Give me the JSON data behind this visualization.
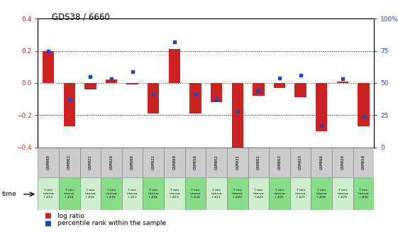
{
  "title": "GDS38 / 6660",
  "samples": [
    "GSM980",
    "GSM863",
    "GSM921",
    "GSM920",
    "GSM988",
    "GSM922",
    "GSM989",
    "GSM858",
    "GSM902",
    "GSM931",
    "GSM861",
    "GSM862",
    "GSM923",
    "GSM860",
    "GSM924",
    "GSM859"
  ],
  "time_labels": [
    "7 min\ninterva\nl #13",
    "7 min\ninterva\nl #14",
    "7 min\ninterva\nl #15",
    "7 min\ninterva\nl #16",
    "7 min\ninterva\nl #17",
    "7 min\ninterva\nl #18",
    "7 min\ninterva\nl #19",
    "7 min\ninterva\nl #20",
    "7 min\ninterva\nl #21",
    "7 min\ninterva\nl #22",
    "7 min\ninterva\nl #23",
    "7 min\ninterva\nl #25",
    "7 min\ninterva\nl #27",
    "7 min\ninterva\nl #28",
    "7 min\ninterva\nl #29",
    "7 min\ninterva\nl #30"
  ],
  "log_ratio": [
    0.2,
    -0.27,
    -0.04,
    0.02,
    -0.01,
    -0.19,
    0.21,
    -0.19,
    -0.12,
    -0.42,
    -0.08,
    -0.03,
    -0.09,
    -0.3,
    0.01,
    -0.27
  ],
  "percentile": [
    75,
    37,
    55,
    53,
    59,
    41,
    82,
    41,
    37,
    28,
    44,
    54,
    56,
    17,
    53,
    24
  ],
  "ylim": [
    -0.4,
    0.4
  ],
  "yticks_left": [
    -0.4,
    -0.2,
    0.0,
    0.2,
    0.4
  ],
  "yticks_right": [
    0,
    25,
    50,
    75,
    100
  ],
  "dotted_lines_black": [
    -0.2,
    0.2
  ],
  "bar_color": "#cc2222",
  "dot_color": "#2244cc",
  "grid_bg": "#ffffff",
  "gsm_cell_color": "#cccccc",
  "time_cell_colors": [
    "#cceecc",
    "#88dd88"
  ]
}
